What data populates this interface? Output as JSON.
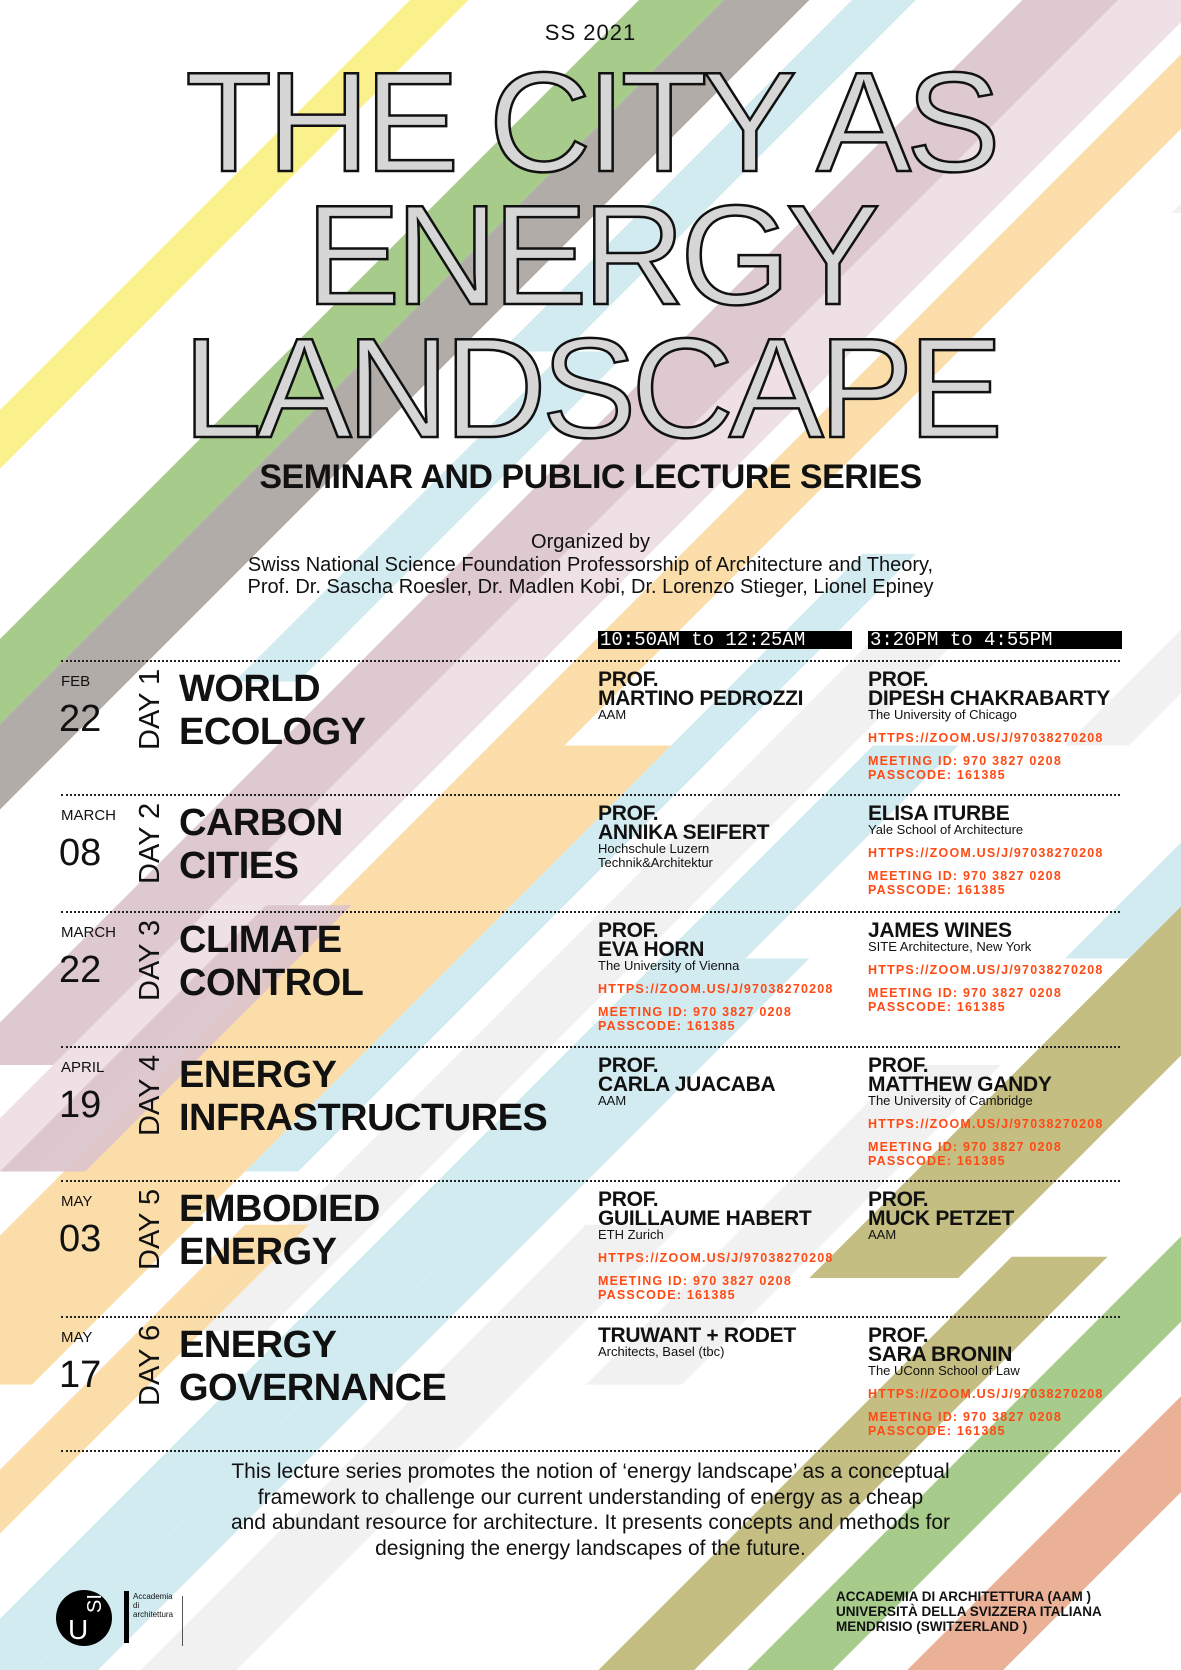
{
  "palette": {
    "yellow": "#f9ef7f",
    "green": "#9dc57e",
    "gray": "#a9a39f",
    "light_blue": "#cde9ef",
    "mauve": "#dcc3cc",
    "light_pink": "#ecdde1",
    "pale_orange": "#fbd9a0",
    "light_gray": "#efefef",
    "khaki": "#bfb774",
    "salmon": "#e8a98b",
    "link_orange": "#ff4a14"
  },
  "header": {
    "semester": "SS 2021",
    "title_lines": [
      "THE CITY AS",
      "ENERGY",
      "LANDSCAPE"
    ],
    "subtitle": "SEMINAR AND PUBLIC LECTURE SERIES",
    "organized": [
      "Organized by",
      "Swiss National Science Foundation Professorship of Architecture and Theory,",
      "Prof. Dr. Sascha Roesler, Dr. Madlen Kobi, Dr. Lorenzo Stieger, Lionel Epiney"
    ]
  },
  "times": [
    "10:50AM to 12:25AM",
    "3:20PM to 4:55PM"
  ],
  "zoom": {
    "link": "HTTPS://ZOOM.US/J/97038270208",
    "meeting_id": "MEETING ID: 970 3827 0208",
    "passcode": "PASSCODE: 161385"
  },
  "rows": [
    {
      "month": "FEB",
      "date": "22",
      "day": "DAY 1",
      "title": [
        "WORLD",
        "ECOLOGY"
      ],
      "speakers": [
        {
          "prof": "PROF.",
          "name": "MARTINO PEDROZZI",
          "affil": [
            "AAM"
          ],
          "zoom": false
        },
        {
          "prof": "PROF.",
          "name": "DIPESH CHAKRABARTY",
          "affil": [
            "The University of Chicago"
          ],
          "zoom": true
        }
      ]
    },
    {
      "month": "MARCH",
      "date": "08",
      "day": "DAY 2",
      "title": [
        "CARBON",
        "CITIES"
      ],
      "speakers": [
        {
          "prof": "PROF.",
          "name": "ANNIKA SEIFERT",
          "affil": [
            "Hochschule Luzern",
            "Technik&Architektur"
          ],
          "zoom": false
        },
        {
          "prof": "",
          "name": "ELISA ITURBE",
          "affil": [
            "Yale School of Architecture"
          ],
          "zoom": true
        }
      ]
    },
    {
      "month": "MARCH",
      "date": "22",
      "day": "DAY 3",
      "title": [
        "CLIMATE",
        "CONTROL"
      ],
      "speakers": [
        {
          "prof": "PROF.",
          "name": "EVA HORN",
          "affil": [
            "The University of Vienna"
          ],
          "zoom": true
        },
        {
          "prof": "",
          "name": "JAMES WINES",
          "affil": [
            "SITE Architecture, New York"
          ],
          "zoom": true
        }
      ]
    },
    {
      "month": "APRIL",
      "date": "19",
      "day": "DAY 4",
      "title": [
        "ENERGY",
        "INFRASTRUCTURES"
      ],
      "speakers": [
        {
          "prof": "PROF.",
          "name": "CARLA JUACABA",
          "affil": [
            "AAM"
          ],
          "zoom": false
        },
        {
          "prof": "PROF.",
          "name": "MATTHEW GANDY",
          "affil": [
            "The University of Cambridge"
          ],
          "zoom": true
        }
      ]
    },
    {
      "month": "MAY",
      "date": "03",
      "day": "DAY 5",
      "title": [
        "EMBODIED",
        "ENERGY"
      ],
      "speakers": [
        {
          "prof": "PROF.",
          "name": "GUILLAUME HABERT",
          "affil": [
            "ETH Zurich"
          ],
          "zoom": true
        },
        {
          "prof": "PROF.",
          "name": "MUCK PETZET",
          "affil": [
            "AAM"
          ],
          "zoom": false
        }
      ]
    },
    {
      "month": "MAY",
      "date": "17",
      "day": "DAY 6",
      "title": [
        "ENERGY",
        "GOVERNANCE"
      ],
      "speakers": [
        {
          "prof": "",
          "name": "TRUWANT + RODET",
          "affil": [
            "Architects, Basel (tbc)"
          ],
          "zoom": false
        },
        {
          "prof": "PROF.",
          "name": "SARA BRONIN",
          "affil": [
            "The UConn School of Law"
          ],
          "zoom": true
        }
      ]
    }
  ],
  "footer": {
    "paragraph": [
      "This lecture series promotes the notion of ‘energy landscape’ as a conceptual",
      "framework to challenge our current understanding of energy as a cheap",
      "and abundant resource for architecture. It presents concepts and methods for",
      "designing the energy landscapes of the future."
    ],
    "logo": {
      "mark": "USI",
      "u": "U",
      "si": "SI",
      "text": [
        "Accademia",
        "di",
        "architettura"
      ]
    },
    "address": [
      "ACCADEMIA DI ARCHITETTURA (AAM )",
      "UNIVERSITÀ DELLA SVIZZERA ITALIANA",
      "MENDRISIO (SWITZERLAND )"
    ]
  }
}
